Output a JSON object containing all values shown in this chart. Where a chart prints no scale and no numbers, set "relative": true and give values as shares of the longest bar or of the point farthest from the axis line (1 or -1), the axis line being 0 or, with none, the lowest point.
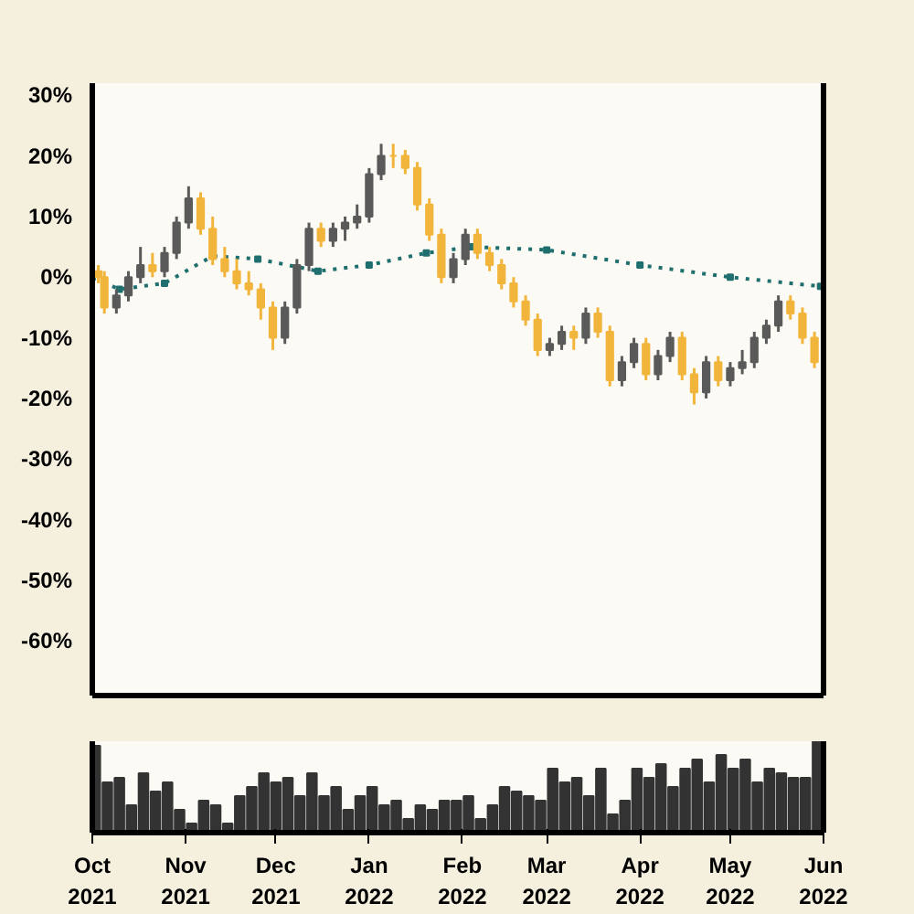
{
  "chart_data": [
    {
      "type": "candlestick",
      "xlim": [
        "2021-10-01",
        "2022-06-01"
      ],
      "ylim": [
        -0.69,
        0.32
      ],
      "yticks": [
        {
          "value": 0.3,
          "label": "30%"
        },
        {
          "value": 0.2,
          "label": "20%"
        },
        {
          "value": 0.1,
          "label": "10%"
        },
        {
          "value": 0,
          "label": "0%"
        },
        {
          "value": -0.1,
          "label": "-10%"
        },
        {
          "value": -0.2,
          "label": "-20%"
        },
        {
          "value": -0.3,
          "label": "-30%"
        },
        {
          "value": -0.4,
          "label": "-40%"
        },
        {
          "value": -0.5,
          "label": "-50%"
        },
        {
          "value": -0.6,
          "label": "-60%"
        }
      ],
      "tick_labels": "y",
      "grid": false,
      "x": [
        "2021-10-03",
        "2021-10-05",
        "2021-10-09",
        "2021-10-13",
        "2021-10-17",
        "2021-10-21",
        "2021-10-25",
        "2021-10-29",
        "2021-11-02",
        "2021-11-06",
        "2021-11-10",
        "2021-11-14",
        "2021-11-18",
        "2021-11-22",
        "2021-11-26",
        "2021-11-30",
        "2021-12-04",
        "2021-12-08",
        "2021-12-12",
        "2021-12-16",
        "2021-12-20",
        "2021-12-24",
        "2021-12-28",
        "2022-01-01",
        "2022-01-05",
        "2022-01-09",
        "2022-01-13",
        "2022-01-17",
        "2022-01-21",
        "2022-01-25",
        "2022-01-29",
        "2022-02-02",
        "2022-02-06",
        "2022-02-10",
        "2022-02-14",
        "2022-02-18",
        "2022-02-22",
        "2022-02-26",
        "2022-03-02",
        "2022-03-06",
        "2022-03-10",
        "2022-03-14",
        "2022-03-18",
        "2022-03-22",
        "2022-03-26",
        "2022-03-30",
        "2022-04-03",
        "2022-04-07",
        "2022-04-11",
        "2022-04-15",
        "2022-04-19",
        "2022-04-23",
        "2022-04-27",
        "2022-05-01",
        "2022-05-05",
        "2022-05-09",
        "2022-05-13",
        "2022-05-17",
        "2022-05-21",
        "2022-05-25",
        "2022-05-29"
      ],
      "ohlc": [
        [
          0.01,
          0.02,
          -0.01,
          0.0
        ],
        [
          0.0,
          0.01,
          -0.06,
          -0.05
        ],
        [
          -0.05,
          -0.02,
          -0.06,
          -0.03
        ],
        [
          -0.03,
          0.01,
          -0.04,
          0.0
        ],
        [
          0.0,
          0.05,
          -0.01,
          0.02
        ],
        [
          0.02,
          0.04,
          0.0,
          0.01
        ],
        [
          0.01,
          0.05,
          0.0,
          0.04
        ],
        [
          0.04,
          0.1,
          0.03,
          0.09
        ],
        [
          0.09,
          0.15,
          0.08,
          0.13
        ],
        [
          0.13,
          0.14,
          0.07,
          0.08
        ],
        [
          0.08,
          0.1,
          0.02,
          0.03
        ],
        [
          0.03,
          0.05,
          0.0,
          0.01
        ],
        [
          0.01,
          0.03,
          -0.02,
          -0.01
        ],
        [
          -0.01,
          0.01,
          -0.03,
          -0.02
        ],
        [
          -0.02,
          -0.01,
          -0.07,
          -0.05
        ],
        [
          -0.05,
          -0.04,
          -0.12,
          -0.1
        ],
        [
          -0.1,
          -0.04,
          -0.11,
          -0.05
        ],
        [
          -0.05,
          0.03,
          -0.06,
          0.02
        ],
        [
          0.02,
          0.09,
          0.01,
          0.08
        ],
        [
          0.08,
          0.09,
          0.05,
          0.06
        ],
        [
          0.06,
          0.09,
          0.05,
          0.08
        ],
        [
          0.08,
          0.1,
          0.06,
          0.09
        ],
        [
          0.09,
          0.12,
          0.08,
          0.1
        ],
        [
          0.1,
          0.18,
          0.09,
          0.17
        ],
        [
          0.17,
          0.22,
          0.16,
          0.2
        ],
        [
          0.2,
          0.22,
          0.18,
          0.2
        ],
        [
          0.2,
          0.21,
          0.17,
          0.18
        ],
        [
          0.18,
          0.19,
          0.11,
          0.12
        ],
        [
          0.12,
          0.13,
          0.06,
          0.07
        ],
        [
          0.07,
          0.08,
          -0.01,
          0.0
        ],
        [
          0.0,
          0.04,
          -0.01,
          0.03
        ],
        [
          0.03,
          0.08,
          0.02,
          0.07
        ],
        [
          0.07,
          0.08,
          0.03,
          0.04
        ],
        [
          0.04,
          0.05,
          0.01,
          0.02
        ],
        [
          0.02,
          0.03,
          -0.02,
          -0.01
        ],
        [
          -0.01,
          0.0,
          -0.05,
          -0.04
        ],
        [
          -0.04,
          -0.03,
          -0.08,
          -0.07
        ],
        [
          -0.07,
          -0.06,
          -0.13,
          -0.12
        ],
        [
          -0.12,
          -0.1,
          -0.13,
          -0.11
        ],
        [
          -0.11,
          -0.08,
          -0.12,
          -0.09
        ],
        [
          -0.09,
          -0.08,
          -0.12,
          -0.1
        ],
        [
          -0.1,
          -0.05,
          -0.11,
          -0.06
        ],
        [
          -0.06,
          -0.05,
          -0.1,
          -0.09
        ],
        [
          -0.09,
          -0.08,
          -0.18,
          -0.17
        ],
        [
          -0.17,
          -0.13,
          -0.18,
          -0.14
        ],
        [
          -0.14,
          -0.1,
          -0.15,
          -0.11
        ],
        [
          -0.11,
          -0.1,
          -0.17,
          -0.16
        ],
        [
          -0.16,
          -0.12,
          -0.17,
          -0.13
        ],
        [
          -0.13,
          -0.09,
          -0.14,
          -0.1
        ],
        [
          -0.1,
          -0.09,
          -0.17,
          -0.16
        ],
        [
          -0.16,
          -0.15,
          -0.21,
          -0.19
        ],
        [
          -0.19,
          -0.13,
          -0.2,
          -0.14
        ],
        [
          -0.14,
          -0.13,
          -0.18,
          -0.17
        ],
        [
          -0.17,
          -0.14,
          -0.18,
          -0.15
        ],
        [
          -0.15,
          -0.12,
          -0.16,
          -0.14
        ],
        [
          -0.14,
          -0.09,
          -0.15,
          -0.1
        ],
        [
          -0.1,
          -0.07,
          -0.11,
          -0.08
        ],
        [
          -0.08,
          -0.03,
          -0.09,
          -0.04
        ],
        [
          -0.04,
          -0.03,
          -0.07,
          -0.06
        ],
        [
          -0.06,
          -0.05,
          -0.11,
          -0.1
        ],
        [
          -0.1,
          -0.09,
          -0.15,
          -0.14
        ]
      ],
      "colors": [
        "#f2b53c",
        "#f2b53c",
        "#5a5a5a",
        "#5a5a5a",
        "#5a5a5a",
        "#f2b53c",
        "#5a5a5a",
        "#5a5a5a",
        "#5a5a5a",
        "#f2b53c",
        "#f2b53c",
        "#f2b53c",
        "#f2b53c",
        "#f2b53c",
        "#f2b53c",
        "#f2b53c",
        "#5a5a5a",
        "#5a5a5a",
        "#5a5a5a",
        "#f2b53c",
        "#5a5a5a",
        "#5a5a5a",
        "#5a5a5a",
        "#5a5a5a",
        "#5a5a5a",
        "#f2b53c",
        "#f2b53c",
        "#f2b53c",
        "#f2b53c",
        "#f2b53c",
        "#5a5a5a",
        "#5a5a5a",
        "#f2b53c",
        "#f2b53c",
        "#f2b53c",
        "#f2b53c",
        "#f2b53c",
        "#f2b53c",
        "#5a5a5a",
        "#5a5a5a",
        "#f2b53c",
        "#5a5a5a",
        "#f2b53c",
        "#f2b53c",
        "#5a5a5a",
        "#5a5a5a",
        "#f2b53c",
        "#5a5a5a",
        "#5a5a5a",
        "#f2b53c",
        "#f2b53c",
        "#5a5a5a",
        "#f2b53c",
        "#5a5a5a",
        "#5a5a5a",
        "#5a5a5a",
        "#5a5a5a",
        "#5a5a5a",
        "#f2b53c",
        "#f2b53c",
        "#f2b53c"
      ],
      "series": [
        {
          "type": "line",
          "color": "#1f6f6f",
          "marker": "square",
          "line_style": "dotted",
          "x": [
            "2021-10-01",
            "2021-10-10",
            "2021-10-25",
            "2021-11-10",
            "2021-11-25",
            "2021-12-15",
            "2022-01-01",
            "2022-01-20",
            "2022-02-04",
            "2022-03-01",
            "2022-04-01",
            "2022-05-01",
            "2022-05-31"
          ],
          "values": [
            0.0,
            -0.02,
            -0.01,
            0.035,
            0.03,
            0.01,
            0.02,
            0.04,
            0.05,
            0.045,
            0.02,
            0.0,
            -0.015
          ]
        }
      ]
    },
    {
      "type": "bar",
      "relative": true,
      "color": "#333333",
      "tick_labels": "x",
      "grid": false,
      "xlim": [
        "2021-10-01",
        "2022-06-01"
      ],
      "xticks": [
        {
          "value": "2021-10-01",
          "label": "Oct\n2021"
        },
        {
          "value": "2021-11-01",
          "label": "Nov\n2021"
        },
        {
          "value": "2021-12-01",
          "label": "Dec\n2021"
        },
        {
          "value": "2022-01-01",
          "label": "Jan\n2022"
        },
        {
          "value": "2022-02-01",
          "label": "Feb\n2022"
        },
        {
          "value": "2022-03-01",
          "label": "Mar\n2022"
        },
        {
          "value": "2022-04-01",
          "label": "Apr\n2022"
        },
        {
          "value": "2022-05-01",
          "label": "May\n2022"
        },
        {
          "value": "2022-06-01",
          "label": "Jun\n2022"
        }
      ],
      "x": [
        "2021-10-02",
        "2021-10-06",
        "2021-10-10",
        "2021-10-14",
        "2021-10-18",
        "2021-10-22",
        "2021-10-26",
        "2021-10-30",
        "2021-11-03",
        "2021-11-07",
        "2021-11-11",
        "2021-11-15",
        "2021-11-19",
        "2021-11-23",
        "2021-11-27",
        "2021-12-01",
        "2021-12-05",
        "2021-12-09",
        "2021-12-13",
        "2021-12-17",
        "2021-12-21",
        "2021-12-25",
        "2021-12-29",
        "2022-01-02",
        "2022-01-06",
        "2022-01-10",
        "2022-01-14",
        "2022-01-18",
        "2022-01-22",
        "2022-01-26",
        "2022-01-30",
        "2022-02-03",
        "2022-02-07",
        "2022-02-11",
        "2022-02-15",
        "2022-02-19",
        "2022-02-23",
        "2022-02-27",
        "2022-03-03",
        "2022-03-07",
        "2022-03-11",
        "2022-03-15",
        "2022-03-19",
        "2022-03-23",
        "2022-03-27",
        "2022-03-31",
        "2022-04-04",
        "2022-04-08",
        "2022-04-12",
        "2022-04-16",
        "2022-04-20",
        "2022-04-24",
        "2022-04-28",
        "2022-05-02",
        "2022-05-06",
        "2022-05-10",
        "2022-05-14",
        "2022-05-18",
        "2022-05-22",
        "2022-05-26",
        "2022-05-30"
      ],
      "values": [
        0.95,
        0.55,
        0.6,
        0.3,
        0.65,
        0.45,
        0.55,
        0.25,
        0.1,
        0.35,
        0.3,
        0.1,
        0.4,
        0.5,
        0.65,
        0.55,
        0.6,
        0.4,
        0.65,
        0.4,
        0.5,
        0.25,
        0.4,
        0.5,
        0.3,
        0.35,
        0.15,
        0.3,
        0.25,
        0.35,
        0.35,
        0.4,
        0.15,
        0.3,
        0.5,
        0.45,
        0.4,
        0.35,
        0.7,
        0.55,
        0.6,
        0.4,
        0.7,
        0.2,
        0.35,
        0.7,
        0.6,
        0.75,
        0.5,
        0.7,
        0.8,
        0.55,
        0.85,
        0.7,
        0.8,
        0.55,
        0.7,
        0.65,
        0.6,
        0.6,
        1.0
      ]
    }
  ]
}
